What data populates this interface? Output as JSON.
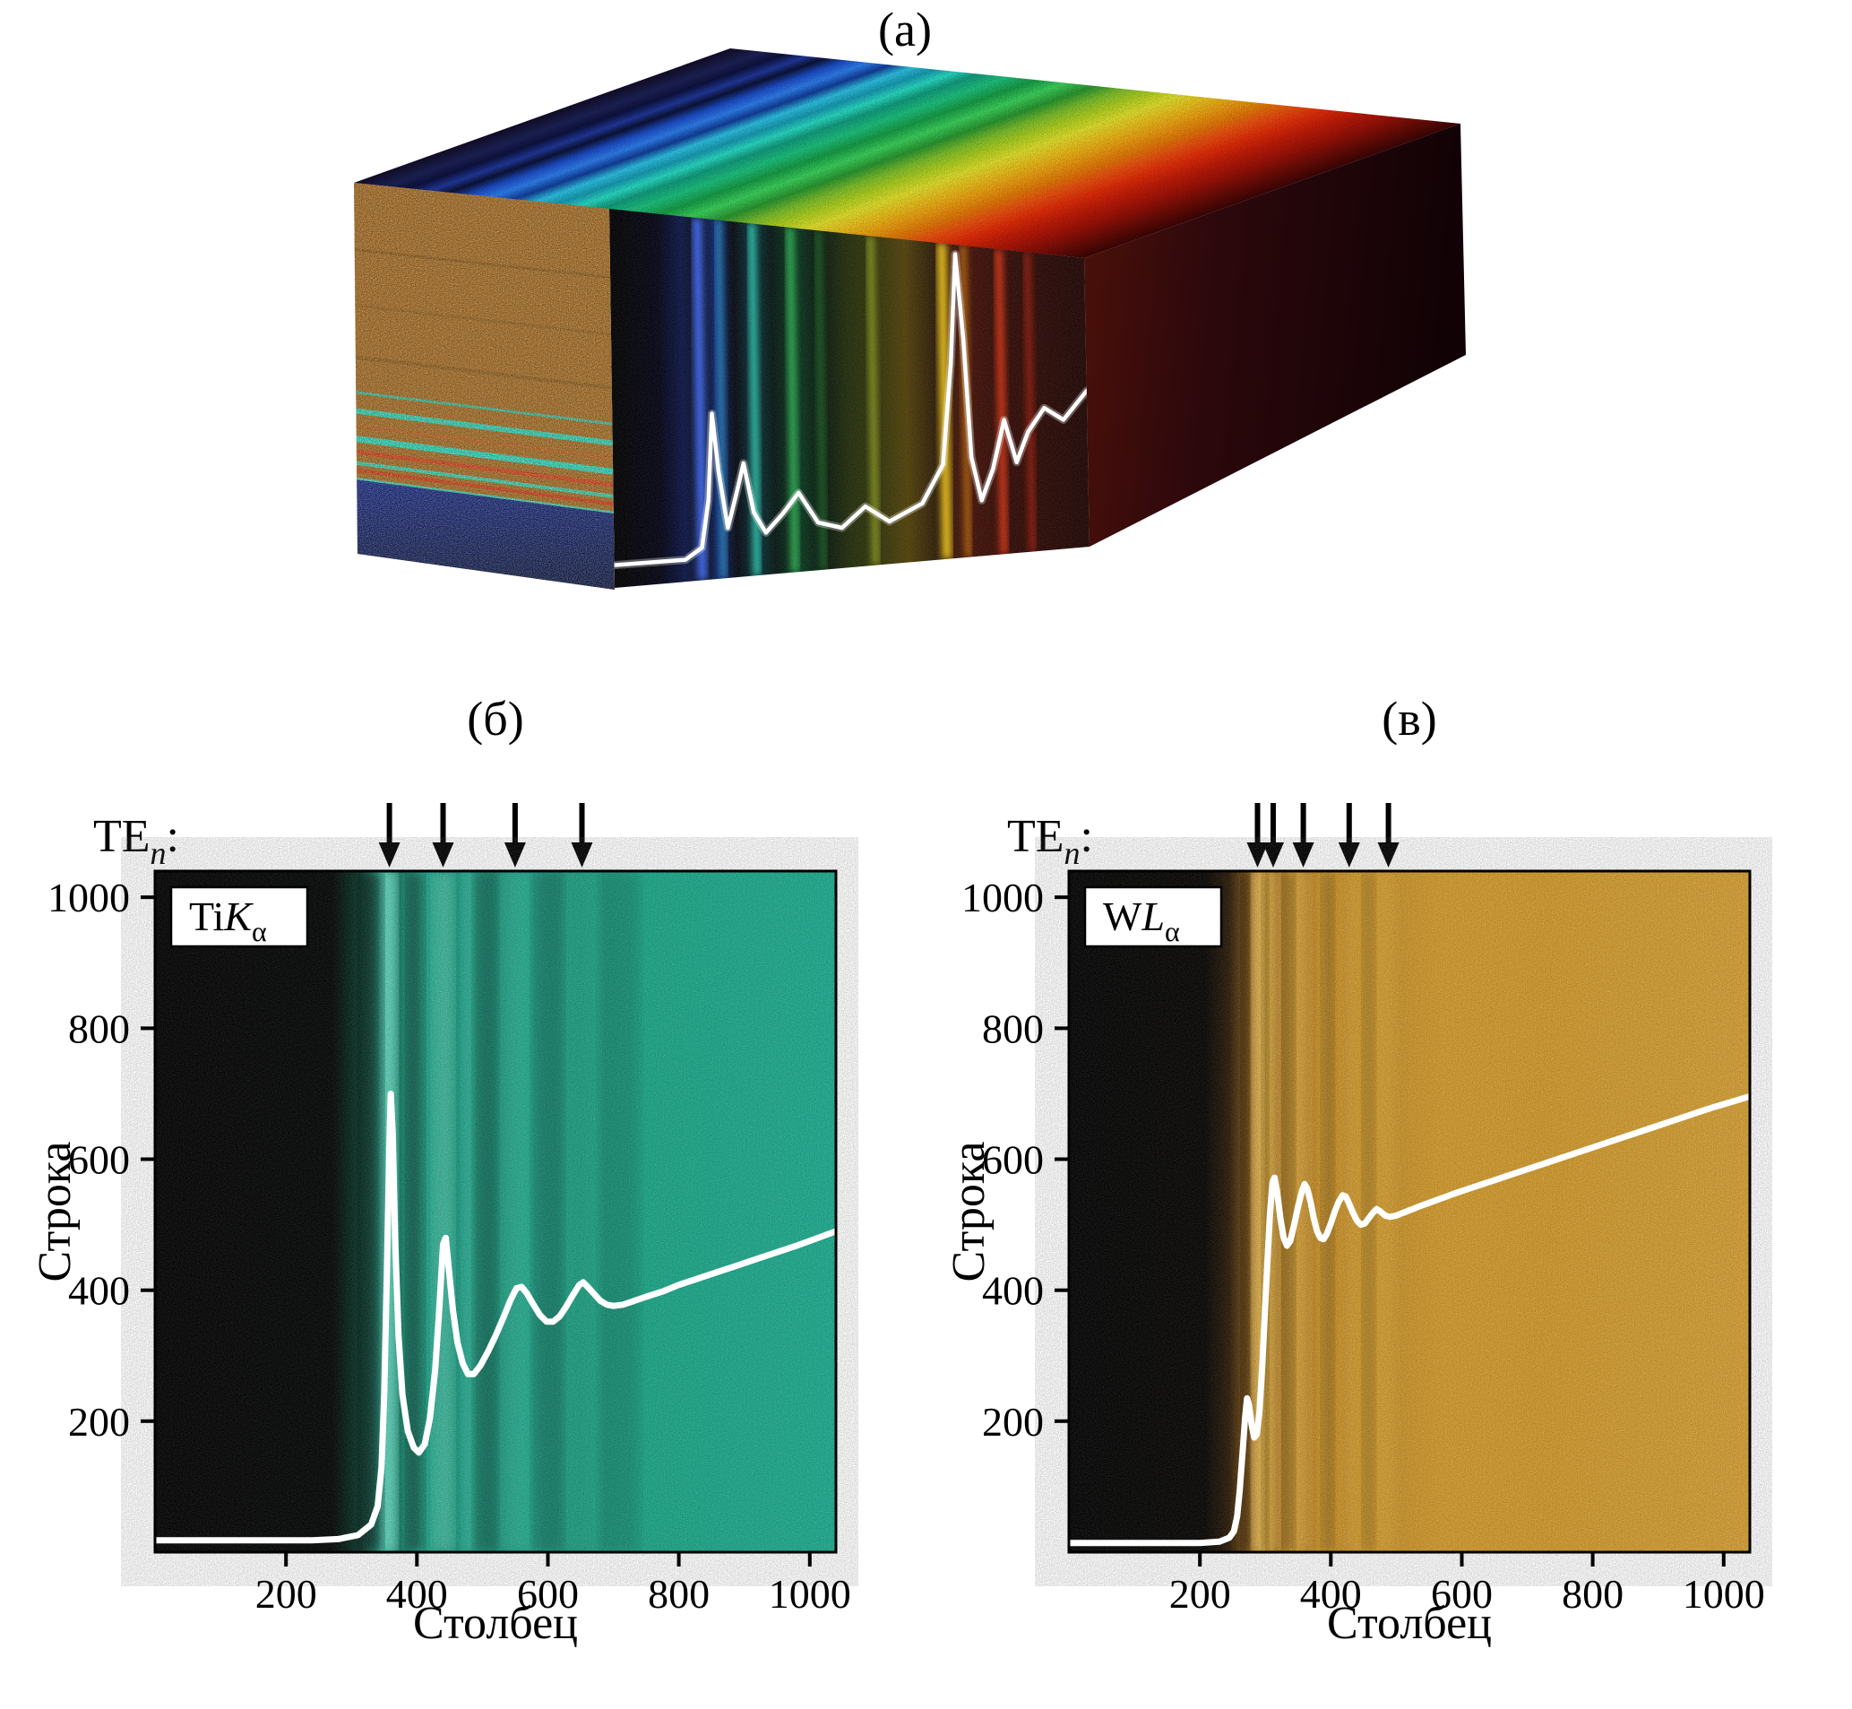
{
  "panel_a": {
    "label": "(а)"
  },
  "panel_b": {
    "label": "(б)",
    "mode_prefix": "TE",
    "mode_sub": "n",
    "mode_suffix": ":",
    "emission_prefix": "Ti",
    "emission_letter": "K",
    "emission_sub": "α",
    "xlabel": "Столбец",
    "ylabel": "Строка"
  },
  "panel_v": {
    "label": "(в)",
    "mode_prefix": "TE",
    "mode_sub": "n",
    "mode_suffix": ":",
    "emission_prefix": "W",
    "emission_letter": "L",
    "emission_sub": "α",
    "xlabel": "Столбец",
    "ylabel": "Строка"
  },
  "colors": {
    "teal_base": "#17a78c",
    "orange_base": "#d79e2f",
    "profile_line": "#ffffff",
    "arrow": "#000000",
    "cube_side_base": "#b06f1c"
  },
  "chart_data": [
    {
      "panel": "a",
      "type": "heatmap",
      "subtype": "hyperspectral-data-cube-3d",
      "rainbow_stops": [
        [
          0.0,
          "#120d2a"
        ],
        [
          0.045,
          "#1c2258"
        ],
        [
          0.075,
          "#0d1240"
        ],
        [
          0.105,
          "#21399f"
        ],
        [
          0.13,
          "#0c1338"
        ],
        [
          0.16,
          "#1e50cf"
        ],
        [
          0.19,
          "#2f82f2"
        ],
        [
          0.22,
          "#123f9e"
        ],
        [
          0.25,
          "#2fc6e8"
        ],
        [
          0.28,
          "#189eb6"
        ],
        [
          0.31,
          "#2ae0c8"
        ],
        [
          0.34,
          "#12a081"
        ],
        [
          0.38,
          "#1fc681"
        ],
        [
          0.42,
          "#17a048"
        ],
        [
          0.46,
          "#3ed65f"
        ],
        [
          0.5,
          "#2a9a31"
        ],
        [
          0.54,
          "#7fc22f"
        ],
        [
          0.58,
          "#b4d621"
        ],
        [
          0.62,
          "#e6e52f"
        ],
        [
          0.66,
          "#efc51f"
        ],
        [
          0.7,
          "#f0a212"
        ],
        [
          0.74,
          "#e87c09"
        ],
        [
          0.78,
          "#ef5110"
        ],
        [
          0.82,
          "#e62d08"
        ],
        [
          0.86,
          "#c61c07"
        ],
        [
          0.91,
          "#9d1107"
        ],
        [
          1.0,
          "#3f0504"
        ]
      ],
      "front_base_stops": [
        [
          0.0,
          "#000000"
        ],
        [
          0.1,
          "#020212"
        ],
        [
          0.15,
          "#0a1342"
        ],
        [
          0.19,
          "#060910"
        ],
        [
          0.22,
          "#0b2268"
        ],
        [
          0.26,
          "#04070e"
        ],
        [
          0.3,
          "#073038"
        ],
        [
          0.34,
          "#041410"
        ],
        [
          0.39,
          "#07351d"
        ],
        [
          0.44,
          "#05140a"
        ],
        [
          0.5,
          "#1f2a08"
        ],
        [
          0.56,
          "#2e3007"
        ],
        [
          0.62,
          "#4c3c06"
        ],
        [
          0.68,
          "#2a1a05"
        ],
        [
          0.74,
          "#401005"
        ],
        [
          0.82,
          "#300803"
        ],
        [
          1.0,
          "#1c0402"
        ]
      ],
      "front_bands": [
        {
          "t": 0.185,
          "w": 0.02,
          "color": "#3f6cff",
          "o": 0.9
        },
        {
          "t": 0.23,
          "w": 0.013,
          "color": "#2f9fd8",
          "o": 0.8
        },
        {
          "t": 0.3,
          "w": 0.015,
          "color": "#2fd8b8",
          "o": 0.85
        },
        {
          "t": 0.38,
          "w": 0.016,
          "color": "#35c858",
          "o": 0.8
        },
        {
          "t": 0.44,
          "w": 0.012,
          "color": "#2a9838",
          "o": 0.6
        },
        {
          "t": 0.55,
          "w": 0.015,
          "color": "#b8cc28",
          "o": 0.6
        },
        {
          "t": 0.7,
          "w": 0.02,
          "color": "#f0c818",
          "o": 0.9
        },
        {
          "t": 0.745,
          "w": 0.012,
          "color": "#f09010",
          "o": 0.7
        },
        {
          "t": 0.82,
          "w": 0.016,
          "color": "#e83818",
          "o": 0.85
        },
        {
          "t": 0.88,
          "w": 0.014,
          "color": "#b82408",
          "o": 0.7
        }
      ],
      "side_stripes": [
        {
          "f": 0.18,
          "color": "#8a5612",
          "w": 3,
          "o": 0.7
        },
        {
          "f": 0.33,
          "color": "#935d13",
          "w": 3,
          "o": 0.6
        },
        {
          "f": 0.47,
          "color": "#8a5612",
          "w": 4,
          "o": 0.6
        },
        {
          "f": 0.565,
          "color": "#27d8b8",
          "w": 3,
          "o": 0.8
        },
        {
          "f": 0.615,
          "color": "#2de2c1",
          "w": 6,
          "o": 0.95
        },
        {
          "f": 0.655,
          "color": "#c8641a",
          "w": 4,
          "o": 0.9
        },
        {
          "f": 0.69,
          "color": "#2de2c1",
          "w": 7,
          "o": 1
        },
        {
          "f": 0.725,
          "color": "#e04414",
          "w": 5,
          "o": 0.95
        },
        {
          "f": 0.755,
          "color": "#30e6c6",
          "w": 4,
          "o": 0.9
        },
        {
          "f": 0.775,
          "color": "#df3b10",
          "w": 4,
          "o": 0.9
        },
        {
          "f": 0.798,
          "color": "#37e8c8",
          "w": 3,
          "o": 0.9
        }
      ],
      "side_bottom_band": {
        "from": 0.8,
        "top": "#16298c",
        "bottom": "#0a1540"
      },
      "spectrum_profile": [
        [
          0,
          0.06
        ],
        [
          0.15,
          0.06
        ],
        [
          0.185,
          0.09
        ],
        [
          0.2,
          0.22
        ],
        [
          0.21,
          0.46
        ],
        [
          0.222,
          0.3
        ],
        [
          0.24,
          0.14
        ],
        [
          0.26,
          0.24
        ],
        [
          0.275,
          0.32
        ],
        [
          0.295,
          0.18
        ],
        [
          0.32,
          0.12
        ],
        [
          0.355,
          0.17
        ],
        [
          0.39,
          0.23
        ],
        [
          0.43,
          0.14
        ],
        [
          0.48,
          0.12
        ],
        [
          0.53,
          0.18
        ],
        [
          0.58,
          0.13
        ],
        [
          0.65,
          0.18
        ],
        [
          0.695,
          0.3
        ],
        [
          0.715,
          0.62
        ],
        [
          0.728,
          0.97
        ],
        [
          0.742,
          0.7
        ],
        [
          0.755,
          0.32
        ],
        [
          0.775,
          0.18
        ],
        [
          0.8,
          0.28
        ],
        [
          0.825,
          0.44
        ],
        [
          0.85,
          0.3
        ],
        [
          0.875,
          0.4
        ],
        [
          0.91,
          0.48
        ],
        [
          0.95,
          0.44
        ],
        [
          1,
          0.54
        ]
      ]
    },
    {
      "panel": "b",
      "type": "heatmap",
      "overlay_type": "line",
      "emission_line": "Ti Kα",
      "xlabel": "Столбец",
      "ylabel": "Строка",
      "x_range": [
        0,
        1040
      ],
      "y_range": [
        0,
        1040
      ],
      "x_ticks": [
        200,
        400,
        600,
        800,
        1000
      ],
      "y_ticks": [
        200,
        400,
        600,
        800,
        1000
      ],
      "arrow_columns": [
        358,
        440,
        550,
        652
      ],
      "base_color": "#17a78c",
      "bg_stops": [
        [
          0.0,
          "#000000"
        ],
        [
          0.26,
          "#010302"
        ],
        [
          0.3,
          "#053527"
        ],
        [
          0.33,
          "#2cc9a8"
        ],
        [
          0.36,
          "#117a62"
        ],
        [
          0.39,
          "#23b697"
        ],
        [
          0.42,
          "#148c72"
        ],
        [
          0.46,
          "#1ea389"
        ],
        [
          0.51,
          "#159176"
        ],
        [
          0.56,
          "#1ba68a"
        ],
        [
          0.62,
          "#169879"
        ],
        [
          0.7,
          "#19a888"
        ],
        [
          1.0,
          "#1bae91"
        ]
      ],
      "bright_bands": [
        {
          "col": 358,
          "w": 18,
          "color": "#9bffe9",
          "o": 0.55
        },
        {
          "col": 440,
          "w": 24,
          "color": "#7df7da",
          "o": 0.4
        },
        {
          "col": 478,
          "w": 14,
          "color": "#5de4c6",
          "o": 0.22
        },
        {
          "col": 550,
          "w": 34,
          "color": "#52dfc3",
          "o": 0.25
        },
        {
          "col": 652,
          "w": 38,
          "color": "#42cdb3",
          "o": 0.15
        }
      ],
      "dark_bands": [
        {
          "col": 330,
          "w": 26,
          "o": 0.55
        },
        {
          "col": 398,
          "w": 20,
          "o": 0.42
        },
        {
          "col": 505,
          "w": 26,
          "o": 0.25
        },
        {
          "col": 600,
          "w": 34,
          "o": 0.2
        },
        {
          "col": 710,
          "w": 44,
          "o": 0.12
        }
      ],
      "profile": [
        [
          0,
          18
        ],
        [
          240,
          18
        ],
        [
          280,
          20
        ],
        [
          310,
          26
        ],
        [
          330,
          42
        ],
        [
          340,
          70
        ],
        [
          346,
          130
        ],
        [
          350,
          240
        ],
        [
          354,
          420
        ],
        [
          358,
          620
        ],
        [
          360,
          700
        ],
        [
          363,
          640
        ],
        [
          367,
          470
        ],
        [
          372,
          330
        ],
        [
          378,
          240
        ],
        [
          386,
          185
        ],
        [
          395,
          160
        ],
        [
          403,
          152
        ],
        [
          412,
          165
        ],
        [
          420,
          205
        ],
        [
          428,
          280
        ],
        [
          434,
          370
        ],
        [
          440,
          470
        ],
        [
          444,
          480
        ],
        [
          449,
          430
        ],
        [
          455,
          370
        ],
        [
          462,
          320
        ],
        [
          470,
          288
        ],
        [
          478,
          272
        ],
        [
          487,
          272
        ],
        [
          497,
          285
        ],
        [
          508,
          305
        ],
        [
          520,
          330
        ],
        [
          532,
          358
        ],
        [
          543,
          385
        ],
        [
          552,
          403
        ],
        [
          560,
          405
        ],
        [
          568,
          395
        ],
        [
          578,
          378
        ],
        [
          588,
          362
        ],
        [
          598,
          352
        ],
        [
          608,
          352
        ],
        [
          618,
          360
        ],
        [
          628,
          375
        ],
        [
          638,
          392
        ],
        [
          648,
          408
        ],
        [
          654,
          412
        ],
        [
          661,
          405
        ],
        [
          670,
          395
        ],
        [
          680,
          384
        ],
        [
          690,
          378
        ],
        [
          700,
          376
        ],
        [
          715,
          378
        ],
        [
          730,
          383
        ],
        [
          750,
          390
        ],
        [
          775,
          398
        ],
        [
          800,
          408
        ],
        [
          830,
          418
        ],
        [
          860,
          428
        ],
        [
          890,
          438
        ],
        [
          920,
          448
        ],
        [
          950,
          458
        ],
        [
          980,
          468
        ],
        [
          1010,
          479
        ],
        [
          1040,
          490
        ]
      ]
    },
    {
      "panel": "v",
      "type": "heatmap",
      "overlay_type": "line",
      "emission_line": "W Lα",
      "xlabel": "Столбец",
      "ylabel": "Строка",
      "x_range": [
        0,
        1040
      ],
      "y_range": [
        0,
        1040
      ],
      "x_ticks": [
        200,
        400,
        600,
        800,
        1000
      ],
      "y_ticks": [
        200,
        400,
        600,
        800,
        1000
      ],
      "arrow_columns": [
        288,
        312,
        358,
        428,
        488
      ],
      "base_color": "#d79e2f",
      "bg_stops": [
        [
          0.0,
          "#000000"
        ],
        [
          0.2,
          "#030200"
        ],
        [
          0.235,
          "#281805"
        ],
        [
          0.26,
          "#7a4e10"
        ],
        [
          0.285,
          "#e3a930"
        ],
        [
          0.305,
          "#a06c15"
        ],
        [
          0.325,
          "#dda22d"
        ],
        [
          0.35,
          "#b47c1a"
        ],
        [
          0.375,
          "#d99e2b"
        ],
        [
          0.405,
          "#c3891d"
        ],
        [
          0.44,
          "#daa02d"
        ],
        [
          0.48,
          "#cd9527"
        ],
        [
          0.55,
          "#d69c2b"
        ],
        [
          0.7,
          "#d49b2a"
        ],
        [
          1.0,
          "#d8a133"
        ]
      ],
      "bright_bands": [
        {
          "col": 288,
          "w": 14,
          "color": "#ffdd84",
          "o": 0.5
        },
        {
          "col": 313,
          "w": 13,
          "color": "#ffd876",
          "o": 0.45
        },
        {
          "col": 358,
          "w": 18,
          "color": "#f8cb66",
          "o": 0.35
        },
        {
          "col": 428,
          "w": 20,
          "color": "#f0c35c",
          "o": 0.25
        },
        {
          "col": 488,
          "w": 20,
          "color": "#eabc52",
          "o": 0.18
        }
      ],
      "dark_bands": [
        {
          "col": 270,
          "w": 10,
          "o": 0.45
        },
        {
          "col": 300,
          "w": 8,
          "o": 0.35
        },
        {
          "col": 336,
          "w": 14,
          "o": 0.3
        },
        {
          "col": 395,
          "w": 14,
          "o": 0.25
        },
        {
          "col": 458,
          "w": 14,
          "o": 0.2
        }
      ],
      "profile": [
        [
          0,
          14
        ],
        [
          200,
          14
        ],
        [
          230,
          16
        ],
        [
          245,
          22
        ],
        [
          252,
          32
        ],
        [
          257,
          55
        ],
        [
          261,
          95
        ],
        [
          265,
          150
        ],
        [
          269,
          205
        ],
        [
          272,
          235
        ],
        [
          275,
          225
        ],
        [
          279,
          195
        ],
        [
          283,
          175
        ],
        [
          287,
          180
        ],
        [
          291,
          215
        ],
        [
          295,
          280
        ],
        [
          299,
          360
        ],
        [
          303,
          440
        ],
        [
          307,
          515
        ],
        [
          311,
          565
        ],
        [
          314,
          572
        ],
        [
          318,
          550
        ],
        [
          323,
          510
        ],
        [
          328,
          480
        ],
        [
          333,
          468
        ],
        [
          338,
          475
        ],
        [
          344,
          500
        ],
        [
          350,
          528
        ],
        [
          356,
          552
        ],
        [
          360,
          562
        ],
        [
          364,
          555
        ],
        [
          369,
          535
        ],
        [
          374,
          510
        ],
        [
          379,
          490
        ],
        [
          384,
          480
        ],
        [
          389,
          478
        ],
        [
          394,
          486
        ],
        [
          400,
          502
        ],
        [
          406,
          520
        ],
        [
          412,
          535
        ],
        [
          418,
          545
        ],
        [
          423,
          543
        ],
        [
          428,
          532
        ],
        [
          434,
          518
        ],
        [
          440,
          506
        ],
        [
          446,
          500
        ],
        [
          452,
          502
        ],
        [
          458,
          510
        ],
        [
          464,
          518
        ],
        [
          470,
          524
        ],
        [
          476,
          520
        ],
        [
          483,
          514
        ],
        [
          490,
          512
        ],
        [
          500,
          514
        ],
        [
          515,
          520
        ],
        [
          535,
          528
        ],
        [
          560,
          537
        ],
        [
          590,
          548
        ],
        [
          620,
          558
        ],
        [
          650,
          568
        ],
        [
          680,
          578
        ],
        [
          710,
          588
        ],
        [
          740,
          598
        ],
        [
          770,
          608
        ],
        [
          800,
          618
        ],
        [
          830,
          628
        ],
        [
          860,
          638
        ],
        [
          890,
          648
        ],
        [
          920,
          658
        ],
        [
          950,
          668
        ],
        [
          980,
          678
        ],
        [
          1010,
          687
        ],
        [
          1040,
          696
        ]
      ]
    }
  ]
}
